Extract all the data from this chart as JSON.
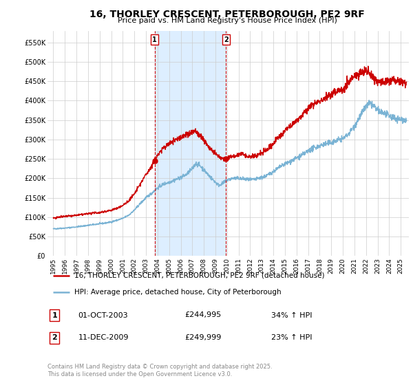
{
  "title": "16, THORLEY CRESCENT, PETERBOROUGH, PE2 9RF",
  "subtitle": "Price paid vs. HM Land Registry's House Price Index (HPI)",
  "legend_line1": "16, THORLEY CRESCENT, PETERBOROUGH, PE2 9RF (detached house)",
  "legend_line2": "HPI: Average price, detached house, City of Peterborough",
  "transaction1_date": "01-OCT-2003",
  "transaction1_price": "£244,995",
  "transaction1_hpi": "34% ↑ HPI",
  "transaction2_date": "11-DEC-2009",
  "transaction2_price": "£249,999",
  "transaction2_hpi": "23% ↑ HPI",
  "sale1_year": 2003.75,
  "sale1_price": 244995,
  "sale2_year": 2009.92,
  "sale2_price": 249999,
  "hpi_color": "#7ab3d4",
  "price_color": "#cc0000",
  "vline_color": "#cc0000",
  "shading_color": "#ddeeff",
  "background_color": "#ffffff",
  "grid_color": "#cccccc",
  "ylabel_ticks": [
    "£0",
    "£50K",
    "£100K",
    "£150K",
    "£200K",
    "£250K",
    "£300K",
    "£350K",
    "£400K",
    "£450K",
    "£500K",
    "£550K"
  ],
  "ylabel_values": [
    0,
    50000,
    100000,
    150000,
    200000,
    250000,
    300000,
    350000,
    400000,
    450000,
    500000,
    550000
  ],
  "ylim": [
    0,
    580000
  ],
  "xlim_start": 1994.5,
  "xlim_end": 2025.7,
  "footer_text": "Contains HM Land Registry data © Crown copyright and database right 2025.\nThis data is licensed under the Open Government Licence v3.0.",
  "copyright_color": "#888888",
  "hpi_anchors": [
    [
      1995.0,
      70000
    ],
    [
      1995.5,
      71000
    ],
    [
      1996.0,
      72000
    ],
    [
      1996.5,
      73500
    ],
    [
      1997.0,
      75000
    ],
    [
      1997.5,
      77000
    ],
    [
      1998.0,
      79000
    ],
    [
      1998.5,
      81000
    ],
    [
      1999.0,
      83000
    ],
    [
      1999.5,
      85000
    ],
    [
      2000.0,
      88000
    ],
    [
      2000.5,
      92000
    ],
    [
      2001.0,
      97000
    ],
    [
      2001.5,
      105000
    ],
    [
      2002.0,
      118000
    ],
    [
      2002.5,
      135000
    ],
    [
      2003.0,
      150000
    ],
    [
      2003.5,
      162000
    ],
    [
      2004.0,
      175000
    ],
    [
      2004.5,
      185000
    ],
    [
      2005.0,
      190000
    ],
    [
      2005.5,
      196000
    ],
    [
      2006.0,
      202000
    ],
    [
      2006.5,
      210000
    ],
    [
      2007.0,
      225000
    ],
    [
      2007.3,
      238000
    ],
    [
      2007.6,
      235000
    ],
    [
      2008.0,
      222000
    ],
    [
      2008.5,
      205000
    ],
    [
      2009.0,
      190000
    ],
    [
      2009.3,
      182000
    ],
    [
      2009.5,
      185000
    ],
    [
      2009.7,
      188000
    ],
    [
      2010.0,
      196000
    ],
    [
      2010.5,
      200000
    ],
    [
      2011.0,
      200000
    ],
    [
      2011.5,
      198000
    ],
    [
      2012.0,
      196000
    ],
    [
      2012.5,
      198000
    ],
    [
      2013.0,
      202000
    ],
    [
      2013.5,
      208000
    ],
    [
      2014.0,
      218000
    ],
    [
      2014.5,
      228000
    ],
    [
      2015.0,
      237000
    ],
    [
      2015.5,
      244000
    ],
    [
      2016.0,
      252000
    ],
    [
      2016.5,
      260000
    ],
    [
      2017.0,
      270000
    ],
    [
      2017.5,
      278000
    ],
    [
      2018.0,
      284000
    ],
    [
      2018.5,
      288000
    ],
    [
      2019.0,
      292000
    ],
    [
      2019.5,
      298000
    ],
    [
      2020.0,
      302000
    ],
    [
      2020.5,
      315000
    ],
    [
      2021.0,
      335000
    ],
    [
      2021.5,
      360000
    ],
    [
      2022.0,
      385000
    ],
    [
      2022.3,
      392000
    ],
    [
      2022.6,
      388000
    ],
    [
      2023.0,
      375000
    ],
    [
      2023.5,
      368000
    ],
    [
      2024.0,
      360000
    ],
    [
      2024.5,
      355000
    ],
    [
      2025.0,
      352000
    ],
    [
      2025.5,
      350000
    ]
  ],
  "price_anchors": [
    [
      1995.0,
      98000
    ],
    [
      1995.5,
      100000
    ],
    [
      1996.0,
      102000
    ],
    [
      1996.5,
      103000
    ],
    [
      1997.0,
      105000
    ],
    [
      1997.5,
      107000
    ],
    [
      1998.0,
      109000
    ],
    [
      1998.5,
      111000
    ],
    [
      1999.0,
      112000
    ],
    [
      1999.5,
      115000
    ],
    [
      2000.0,
      118000
    ],
    [
      2000.5,
      123000
    ],
    [
      2001.0,
      130000
    ],
    [
      2001.5,
      142000
    ],
    [
      2002.0,
      160000
    ],
    [
      2002.5,
      185000
    ],
    [
      2003.0,
      210000
    ],
    [
      2003.5,
      232000
    ],
    [
      2003.75,
      244995
    ],
    [
      2004.0,
      260000
    ],
    [
      2004.5,
      278000
    ],
    [
      2005.0,
      290000
    ],
    [
      2005.5,
      298000
    ],
    [
      2006.0,
      305000
    ],
    [
      2006.5,
      312000
    ],
    [
      2007.0,
      318000
    ],
    [
      2007.2,
      322000
    ],
    [
      2007.5,
      315000
    ],
    [
      2008.0,
      300000
    ],
    [
      2008.5,
      278000
    ],
    [
      2009.0,
      262000
    ],
    [
      2009.5,
      252000
    ],
    [
      2009.92,
      249999
    ],
    [
      2010.0,
      252000
    ],
    [
      2010.5,
      258000
    ],
    [
      2011.0,
      260000
    ],
    [
      2011.3,
      265000
    ],
    [
      2011.6,
      258000
    ],
    [
      2012.0,
      255000
    ],
    [
      2012.5,
      258000
    ],
    [
      2013.0,
      265000
    ],
    [
      2013.5,
      275000
    ],
    [
      2014.0,
      290000
    ],
    [
      2014.5,
      308000
    ],
    [
      2015.0,
      322000
    ],
    [
      2015.5,
      335000
    ],
    [
      2016.0,
      350000
    ],
    [
      2016.5,
      362000
    ],
    [
      2017.0,
      378000
    ],
    [
      2017.5,
      392000
    ],
    [
      2018.0,
      400000
    ],
    [
      2018.5,
      408000
    ],
    [
      2019.0,
      415000
    ],
    [
      2019.5,
      425000
    ],
    [
      2020.0,
      430000
    ],
    [
      2020.5,
      448000
    ],
    [
      2021.0,
      462000
    ],
    [
      2021.5,
      472000
    ],
    [
      2022.0,
      478000
    ],
    [
      2022.2,
      475000
    ],
    [
      2022.5,
      465000
    ],
    [
      2022.8,
      455000
    ],
    [
      2023.0,
      452000
    ],
    [
      2023.5,
      448000
    ],
    [
      2024.0,
      450000
    ],
    [
      2024.3,
      455000
    ],
    [
      2024.6,
      452000
    ],
    [
      2025.0,
      450000
    ],
    [
      2025.5,
      448000
    ]
  ]
}
